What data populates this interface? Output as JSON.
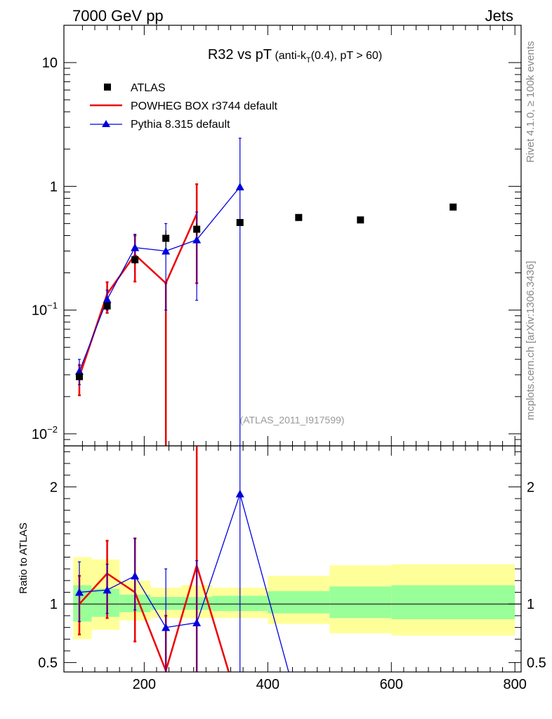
{
  "header": {
    "left": "7000 GeV pp",
    "right": "Jets"
  },
  "title": {
    "main": "R32 vs pT",
    "sub_pre": "(anti-k",
    "sub_sub": "T",
    "sub_post": "(0.4), pT > 60)"
  },
  "side_labels": {
    "rivet": "Rivet 4.1.0, ≥ 100k events",
    "mcplots": "mcplots.cern.ch [arXiv:1306.3436]"
  },
  "watermark": "(ATLAS_2011_I917599)",
  "legend": [
    {
      "key": "atlas",
      "label": "ATLAS"
    },
    {
      "key": "powheg",
      "label": "POWHEG BOX r3744 default"
    },
    {
      "key": "pythia",
      "label": "Pythia 8.315 default"
    }
  ],
  "colors": {
    "atlas": "#000000",
    "powheg": "#ee0000",
    "pythia": "#0000dd",
    "band_inner": "#99ff99",
    "band_outer": "#ffff99"
  },
  "chart_data": {
    "type": "scatter",
    "x_ticks": [
      "200",
      "400",
      "600",
      "800"
    ],
    "xlim": [
      70,
      810
    ],
    "main": {
      "yscale": "log",
      "ylim": [
        0.008,
        20
      ],
      "y_ticks": [
        {
          "value": 10,
          "base": "10",
          "exp": ""
        },
        {
          "value": 1,
          "base": "1",
          "exp": ""
        },
        {
          "value": 0.1,
          "base": "10",
          "exp": "−1"
        },
        {
          "value": 0.01,
          "base": "10",
          "exp": "−2"
        }
      ],
      "series": [
        {
          "name": "ATLAS",
          "key": "atlas",
          "x": [
            95,
            140,
            185,
            235,
            285,
            355,
            450,
            550,
            700
          ],
          "y": [
            0.029,
            0.108,
            0.255,
            0.38,
            0.45,
            0.51,
            0.56,
            0.535,
            0.68
          ],
          "yerr_lo": [
            0.002,
            0.006,
            0.02,
            0.06,
            0.05,
            0.0,
            0.0,
            0.0,
            0.0
          ],
          "yerr_hi": [
            0.002,
            0.006,
            0.02,
            0.06,
            0.05,
            0.0,
            0.0,
            0.0,
            0.0
          ]
        },
        {
          "name": "POWHEG BOX r3744 default",
          "key": "powheg",
          "x": [
            95,
            140,
            185,
            235,
            285
          ],
          "y": [
            0.029,
            0.135,
            0.28,
            0.165,
            0.6
          ],
          "err_lo": [
            0.0205,
            0.095,
            0.17,
            0.0001,
            0.165
          ],
          "err_hi": [
            0.036,
            0.168,
            0.4,
            0.165,
            1.04
          ]
        },
        {
          "name": "Pythia 8.315 default",
          "key": "pythia",
          "x": [
            95,
            140,
            185,
            235,
            285,
            355
          ],
          "y": [
            0.032,
            0.122,
            0.32,
            0.3,
            0.37,
            0.99
          ],
          "err_lo": [
            0.025,
            0.1,
            0.25,
            0.1,
            0.12,
            0.0001
          ],
          "err_hi": [
            0.04,
            0.145,
            0.41,
            0.5,
            0.62,
            2.45
          ]
        }
      ]
    },
    "ratio": {
      "ylabel": "Ratio to ATLAS",
      "ylim": [
        0.42,
        2.35
      ],
      "y_ticks": [
        "0.5",
        "1",
        "2"
      ],
      "y_tick_values": [
        0.5,
        1,
        2
      ],
      "band_bins": [
        {
          "x0": 85,
          "x1": 115,
          "inner": [
            0.85,
            1.16
          ],
          "outer": [
            0.7,
            1.4
          ]
        },
        {
          "x0": 115,
          "x1": 160,
          "inner": [
            0.89,
            1.13
          ],
          "outer": [
            0.78,
            1.38
          ]
        },
        {
          "x0": 160,
          "x1": 210,
          "inner": [
            0.93,
            1.08
          ],
          "outer": [
            0.86,
            1.2
          ]
        },
        {
          "x0": 210,
          "x1": 260,
          "inner": [
            0.95,
            1.06
          ],
          "outer": [
            0.88,
            1.14
          ]
        },
        {
          "x0": 260,
          "x1": 310,
          "inner": [
            0.95,
            1.06
          ],
          "outer": [
            0.88,
            1.16
          ]
        },
        {
          "x0": 310,
          "x1": 400,
          "inner": [
            0.94,
            1.07
          ],
          "outer": [
            0.88,
            1.14
          ]
        },
        {
          "x0": 400,
          "x1": 500,
          "inner": [
            0.92,
            1.11
          ],
          "outer": [
            0.83,
            1.24
          ]
        },
        {
          "x0": 500,
          "x1": 600,
          "inner": [
            0.88,
            1.15
          ],
          "outer": [
            0.75,
            1.33
          ]
        },
        {
          "x0": 600,
          "x1": 800,
          "inner": [
            0.87,
            1.16
          ],
          "outer": [
            0.73,
            1.34
          ]
        }
      ],
      "series": [
        {
          "key": "powheg",
          "x": [
            95,
            140,
            185,
            235,
            285,
            355
          ],
          "y": [
            1.0,
            1.26,
            1.1,
            0.43,
            1.33,
            0.1
          ],
          "err_lo": [
            0.74,
            0.88,
            0.68,
            0.1,
            0.1,
            null
          ],
          "err_hi": [
            1.24,
            1.54,
            1.56,
            0.9,
            2.4,
            null
          ]
        },
        {
          "key": "pythia",
          "x": [
            95,
            140,
            185,
            235,
            285,
            355,
            440
          ],
          "y": [
            1.1,
            1.12,
            1.24,
            0.8,
            0.84,
            1.94,
            0.3
          ],
          "err_lo": [
            0.85,
            0.92,
            0.95,
            0.3,
            0.3,
            0.1,
            null
          ],
          "err_hi": [
            1.36,
            1.34,
            1.56,
            1.3,
            1.37,
            4.5,
            null
          ]
        }
      ]
    }
  }
}
